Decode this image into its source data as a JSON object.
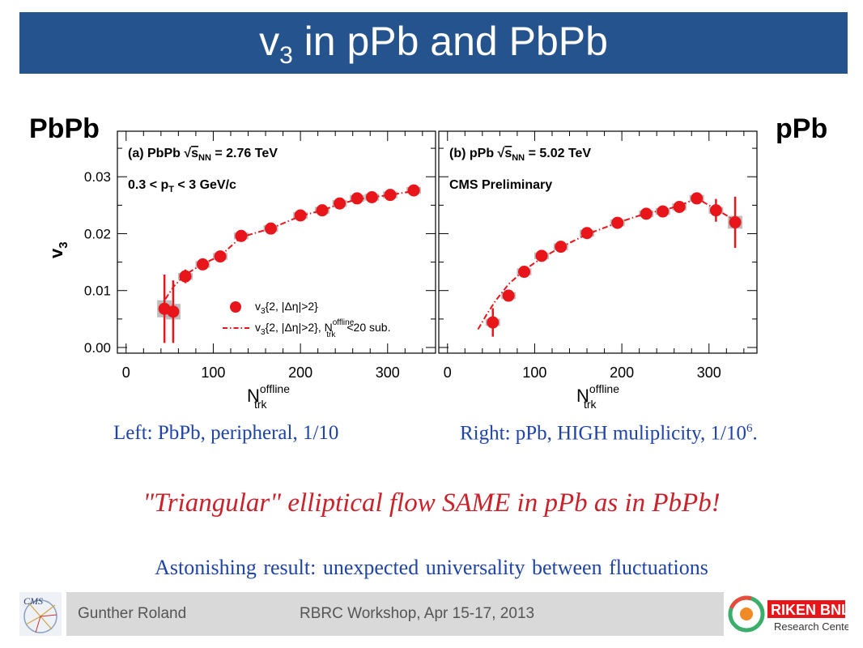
{
  "title": {
    "main": "v",
    "sub": "3",
    "rest": " in pPb and PbPb"
  },
  "side_labels": {
    "left": "PbPb",
    "right": "pPb"
  },
  "captions": {
    "left": "Left: PbPb, peripheral, 1/10",
    "right_main": "Right: pPb, HIGH muliplicity, 1/10",
    "right_sup": "6",
    "right_tail": "."
  },
  "headline": "\"Triangular\" elliptical flow SAME in pPb as in PbPb!",
  "subline": "Astonishing result: unexpected universality between fluctuations",
  "footer": {
    "author": "Gunther Roland",
    "event": "RBRC Workshop, Apr 15-17, 2013",
    "logo_left_text": "CMS",
    "logo_right_line1": "RIKEN BNL",
    "logo_right_line2": "Research Center"
  },
  "colors": {
    "title_bar": "#25538e",
    "marker": "#e8161b",
    "caption_blue": "#1f44a9",
    "headline_red": "#c9222b",
    "syst_box": "#b3b3b3"
  },
  "chart_data": [
    {
      "type": "scatter",
      "panel": "left",
      "label_line1": {
        "a": "(a) PbPb  ",
        "b": "s",
        "bsub": "NN",
        "c": " = 2.76 TeV"
      },
      "label_line2": {
        "a": "0.3 < p",
        "asub": "T",
        "b": " < 3 GeV/c"
      },
      "xlabel": {
        "main": "N",
        "sup": "offline",
        "sub": "trk"
      },
      "ylabel": {
        "main": "v",
        "sub": "3"
      },
      "xlim": [
        -10,
        355
      ],
      "ylim": [
        -0.001,
        0.038
      ],
      "xticks": [
        "0",
        "100",
        "200",
        "300"
      ],
      "yticks": [
        "0.00",
        "0.01",
        "0.02",
        "0.03"
      ],
      "legend": {
        "entry1": {
          "a": "v",
          "asub": "3",
          "b": "{2, |Δη|>2}"
        },
        "entry2": {
          "a": "v",
          "asub": "3",
          "b": "{2, |Δη|>2}, N",
          "bsup": "offline",
          "bsub": "trk",
          "c": "<20 sub."
        }
      },
      "series": [
        {
          "name": "v3{2, |Δη|>2}",
          "points": [
            {
              "x": 44,
              "y": 0.0068,
              "err": 0.006
            },
            {
              "x": 54,
              "y": 0.0063,
              "err": 0.0055
            },
            {
              "x": 68,
              "y": 0.0125,
              "err": 0.0012
            },
            {
              "x": 88,
              "y": 0.0146,
              "err": 0.0007
            },
            {
              "x": 108,
              "y": 0.016,
              "err": 0.0006
            },
            {
              "x": 132,
              "y": 0.0196,
              "err": 0.0006
            },
            {
              "x": 166,
              "y": 0.0209,
              "err": 0.0005
            },
            {
              "x": 200,
              "y": 0.0232,
              "err": 0.0005
            },
            {
              "x": 225,
              "y": 0.0241,
              "err": 0.0005
            },
            {
              "x": 245,
              "y": 0.0253,
              "err": 0.0005
            },
            {
              "x": 265,
              "y": 0.0262,
              "err": 0.0005
            },
            {
              "x": 282,
              "y": 0.0264,
              "err": 0.0005
            },
            {
              "x": 303,
              "y": 0.0268,
              "err": 0.0005
            },
            {
              "x": 330,
              "y": 0.0276,
              "err": 0.0005
            }
          ]
        },
        {
          "name": "v3{2, |Δη|>2}, N_trk^offline<20 sub.",
          "style": "dash-dot",
          "points": [
            {
              "x": 45,
              "y": 0.0085
            },
            {
              "x": 55,
              "y": 0.0108
            },
            {
              "x": 68,
              "y": 0.0128
            },
            {
              "x": 88,
              "y": 0.0147
            },
            {
              "x": 108,
              "y": 0.0161
            },
            {
              "x": 132,
              "y": 0.0194
            },
            {
              "x": 166,
              "y": 0.0209
            },
            {
              "x": 200,
              "y": 0.0231
            },
            {
              "x": 225,
              "y": 0.0241
            },
            {
              "x": 245,
              "y": 0.0252
            },
            {
              "x": 265,
              "y": 0.026
            },
            {
              "x": 282,
              "y": 0.0264
            },
            {
              "x": 303,
              "y": 0.0268
            },
            {
              "x": 330,
              "y": 0.0275
            }
          ]
        }
      ]
    },
    {
      "type": "scatter",
      "panel": "right",
      "label_line1": {
        "a": "(b) pPb  ",
        "b": "s",
        "bsub": "NN",
        "c": " = 5.02 TeV"
      },
      "label_line2": {
        "a": "CMS Preliminary"
      },
      "xlabel": {
        "main": "N",
        "sup": "offline",
        "sub": "trk"
      },
      "xlim": [
        -10,
        355
      ],
      "ylim": [
        -0.001,
        0.038
      ],
      "xticks": [
        "0",
        "100",
        "200",
        "300"
      ],
      "series": [
        {
          "name": "v3{2, |Δη|>2}",
          "points": [
            {
              "x": 52,
              "y": 0.0044,
              "err": 0.0025
            },
            {
              "x": 70,
              "y": 0.0091,
              "err": 0.0008
            },
            {
              "x": 88,
              "y": 0.0133,
              "err": 0.0008
            },
            {
              "x": 108,
              "y": 0.0161,
              "err": 0.0007
            },
            {
              "x": 130,
              "y": 0.0177,
              "err": 0.0007
            },
            {
              "x": 160,
              "y": 0.0201,
              "err": 0.0007
            },
            {
              "x": 195,
              "y": 0.0219,
              "err": 0.0007
            },
            {
              "x": 228,
              "y": 0.0235,
              "err": 0.0008
            },
            {
              "x": 247,
              "y": 0.0239,
              "err": 0.0008
            },
            {
              "x": 266,
              "y": 0.0247,
              "err": 0.0009
            },
            {
              "x": 286,
              "y": 0.0262,
              "err": 0.001
            },
            {
              "x": 308,
              "y": 0.0241,
              "err": 0.002
            },
            {
              "x": 330,
              "y": 0.022,
              "err": 0.0045
            }
          ]
        },
        {
          "name": "v3{2, |Δη|>2}, N_trk^offline<20 sub.",
          "style": "dash-dot",
          "points": [
            {
              "x": 35,
              "y": 0.0032
            },
            {
              "x": 45,
              "y": 0.0058
            },
            {
              "x": 55,
              "y": 0.0082
            },
            {
              "x": 70,
              "y": 0.0111
            },
            {
              "x": 88,
              "y": 0.0136
            },
            {
              "x": 108,
              "y": 0.0157
            },
            {
              "x": 130,
              "y": 0.0176
            },
            {
              "x": 160,
              "y": 0.0199
            },
            {
              "x": 195,
              "y": 0.0219
            },
            {
              "x": 228,
              "y": 0.0236
            },
            {
              "x": 247,
              "y": 0.0241
            },
            {
              "x": 266,
              "y": 0.0249
            },
            {
              "x": 286,
              "y": 0.0262
            },
            {
              "x": 308,
              "y": 0.0243
            },
            {
              "x": 330,
              "y": 0.0223
            }
          ]
        }
      ]
    }
  ]
}
